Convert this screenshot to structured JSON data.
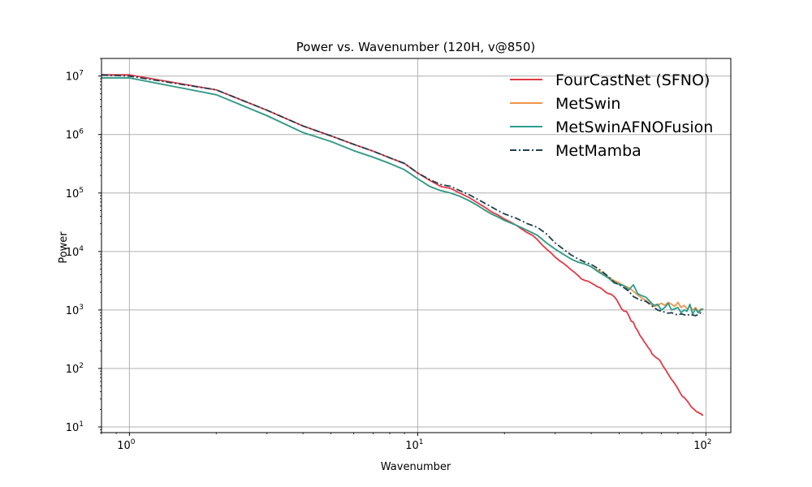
{
  "chart_data": {
    "type": "line",
    "title": "Power vs. Wavenumber (120H, v@850)",
    "xlabel": "Wavenumber",
    "ylabel": "Power",
    "xscale": "log",
    "yscale": "log",
    "xlim": [
      0.8,
      122
    ],
    "ylim": [
      8,
      20000000
    ],
    "grid": true,
    "legend_position": "top-right",
    "x_ticks": [
      {
        "value": 1,
        "label": "10",
        "exp": "0"
      },
      {
        "value": 10,
        "label": "10",
        "exp": "1"
      },
      {
        "value": 100,
        "label": "10",
        "exp": "2"
      }
    ],
    "y_ticks": [
      {
        "value": 10,
        "label": "10",
        "exp": "1"
      },
      {
        "value": 100,
        "label": "10",
        "exp": "2"
      },
      {
        "value": 1000,
        "label": "10",
        "exp": "3"
      },
      {
        "value": 10000,
        "label": "10",
        "exp": "4"
      },
      {
        "value": 100000,
        "label": "10",
        "exp": "5"
      },
      {
        "value": 1000000,
        "label": "10",
        "exp": "6"
      },
      {
        "value": 10000000,
        "label": "10",
        "exp": "7"
      }
    ],
    "series": [
      {
        "name": "FourCastNet (SFNO)",
        "color": "#e03a45",
        "dash": "solid",
        "x": [
          0.8,
          1,
          2,
          3,
          4,
          5,
          6,
          7,
          8,
          9,
          10,
          11,
          12,
          13,
          14,
          15,
          16,
          17,
          18,
          19,
          20,
          21,
          22,
          23,
          24,
          25,
          26,
          27,
          28,
          29,
          30,
          31,
          32,
          33,
          34,
          35,
          36,
          37,
          38,
          39,
          40,
          41,
          42,
          43,
          44,
          45,
          46,
          47,
          48,
          49,
          50,
          51,
          52,
          53,
          54,
          55,
          56,
          57,
          58,
          59,
          60,
          61,
          62,
          63,
          64,
          65,
          66,
          67,
          68,
          69,
          70,
          71,
          72,
          73,
          74,
          75,
          76,
          77,
          78,
          79,
          80,
          81,
          82,
          83,
          84,
          85,
          86,
          87,
          88,
          89,
          90,
          91,
          92,
          93,
          94,
          95,
          96,
          97,
          98
        ],
        "values": [
          10500000,
          10500000,
          5800000,
          2600000,
          1400000,
          950000,
          680000,
          520000,
          400000,
          320000,
          220000,
          165000,
          130000,
          120000,
          100000,
          85000,
          70000,
          58000,
          48000,
          42000,
          36000,
          32000,
          28000,
          24000,
          21000,
          19000,
          16000,
          13000,
          11000,
          9500,
          8000,
          7000,
          6300,
          5600,
          4900,
          4400,
          3900,
          3400,
          3200,
          3100,
          2900,
          2700,
          2500,
          2400,
          2200,
          2000,
          1900,
          1850,
          1700,
          1500,
          1250,
          1050,
          950,
          950,
          800,
          650,
          620,
          500,
          440,
          370,
          330,
          290,
          260,
          230,
          210,
          180,
          165,
          155,
          148,
          140,
          125,
          110,
          100,
          90,
          80,
          72,
          65,
          60,
          55,
          50,
          45,
          40,
          36,
          33,
          32,
          30,
          28,
          26,
          24,
          22,
          21,
          20,
          19,
          18,
          18,
          17,
          17,
          16,
          16
        ]
      },
      {
        "name": "MetSwin",
        "color": "#f0944a",
        "dash": "solid",
        "x": [
          0.8,
          1,
          2,
          3,
          4,
          5,
          6,
          7,
          8,
          9,
          10,
          11,
          12,
          13,
          14,
          15,
          16,
          17,
          18,
          19,
          20,
          22,
          24,
          26,
          28,
          30,
          32,
          34,
          36,
          38,
          40,
          42,
          44,
          46,
          48,
          50,
          52,
          54,
          56,
          58,
          60,
          62,
          64,
          66,
          68,
          70,
          72,
          74,
          76,
          78,
          80,
          82,
          84,
          86,
          88,
          90,
          92,
          94,
          96,
          98
        ],
        "values": [
          9300000,
          9300000,
          4800000,
          2100000,
          1080000,
          760000,
          530000,
          410000,
          320000,
          250000,
          175000,
          130000,
          110000,
          100000,
          88000,
          75000,
          63000,
          52000,
          44000,
          39000,
          34000,
          28000,
          23000,
          19000,
          14000,
          11000,
          9000,
          7500,
          6600,
          6100,
          5500,
          4800,
          4200,
          3600,
          3200,
          2900,
          2600,
          2400,
          2100,
          1800,
          1600,
          1450,
          1300,
          1150,
          1200,
          1300,
          1200,
          1350,
          1250,
          1150,
          1350,
          1100,
          1200,
          1050,
          1150,
          1000,
          1100,
          950,
          1050,
          1000
        ]
      },
      {
        "name": "MetSwinAFNOFusion",
        "color": "#2a9d8f",
        "dash": "solid",
        "x": [
          0.8,
          1,
          2,
          3,
          4,
          5,
          6,
          7,
          8,
          9,
          10,
          11,
          12,
          13,
          14,
          15,
          16,
          17,
          18,
          19,
          20,
          22,
          24,
          26,
          28,
          30,
          32,
          34,
          36,
          38,
          40,
          42,
          44,
          46,
          48,
          50,
          52,
          54,
          56,
          58,
          60,
          62,
          64,
          66,
          68,
          70,
          72,
          74,
          76,
          78,
          80,
          82,
          84,
          86,
          88,
          90,
          92,
          94,
          96,
          98
        ],
        "values": [
          9300000,
          9300000,
          4800000,
          2100000,
          1080000,
          760000,
          530000,
          410000,
          320000,
          250000,
          175000,
          130000,
          110000,
          100000,
          88000,
          75000,
          63000,
          52000,
          44000,
          39000,
          34000,
          28000,
          23000,
          19000,
          14000,
          11000,
          9000,
          7500,
          6600,
          6100,
          5500,
          4600,
          4000,
          3500,
          2900,
          2750,
          2600,
          2200,
          2700,
          1900,
          1750,
          1650,
          1400,
          1200,
          1250,
          1000,
          1100,
          1300,
          1000,
          1050,
          1100,
          900,
          1000,
          950,
          1250,
          850,
          1050,
          900,
          1000,
          1050
        ]
      },
      {
        "name": "MetMamba",
        "color": "#1f3f4f",
        "dash": "dashdot",
        "x": [
          0.8,
          1,
          2,
          3,
          4,
          5,
          6,
          7,
          8,
          9,
          10,
          11,
          12,
          13,
          14,
          15,
          16,
          17,
          18,
          19,
          20,
          22,
          24,
          26,
          28,
          30,
          32,
          34,
          36,
          38,
          40,
          42,
          44,
          46,
          48,
          50,
          52,
          54,
          56,
          58,
          60,
          62,
          64,
          66,
          68,
          70,
          72,
          74,
          76,
          78,
          80,
          82,
          84,
          86,
          88,
          90,
          92,
          94,
          96,
          98
        ],
        "values": [
          10500000,
          10000000,
          5800000,
          2600000,
          1400000,
          950000,
          680000,
          520000,
          400000,
          320000,
          220000,
          170000,
          140000,
          130000,
          110000,
          95000,
          80000,
          68000,
          58000,
          50000,
          44000,
          37000,
          30000,
          26000,
          20000,
          14000,
          11000,
          8800,
          7500,
          6600,
          6000,
          5200,
          4400,
          3700,
          3000,
          2700,
          2400,
          2100,
          1700,
          1550,
          1450,
          1400,
          1250,
          1100,
          1000,
          950,
          920,
          880,
          900,
          850,
          820,
          860,
          830,
          800,
          850,
          820,
          800,
          830,
          900,
          850
        ]
      }
    ]
  }
}
